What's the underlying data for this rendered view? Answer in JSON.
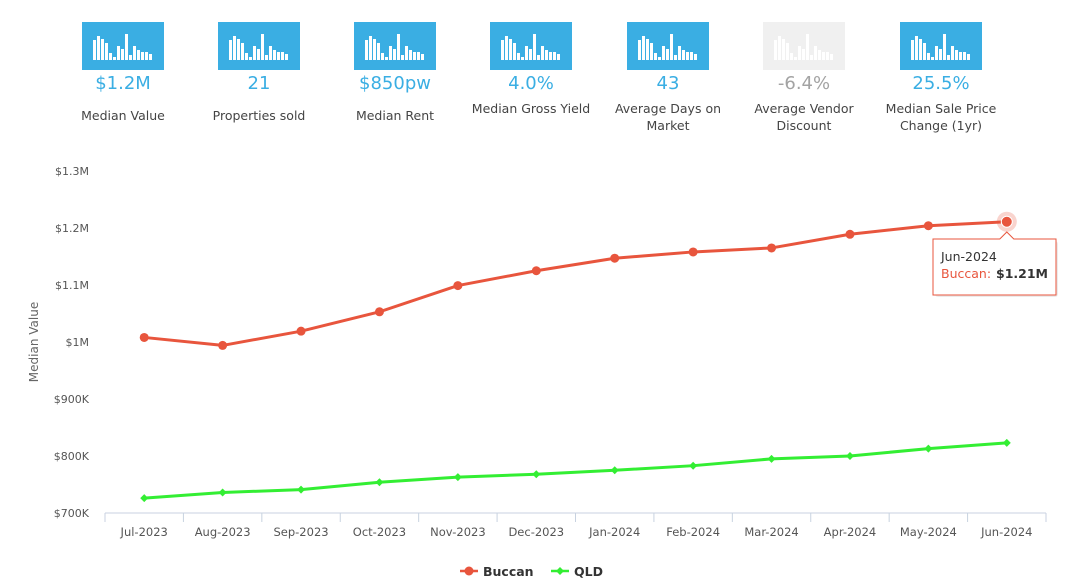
{
  "stats": [
    {
      "value": "$1.2M",
      "label": "Median Value",
      "muted": false
    },
    {
      "value": "21",
      "label": "Properties sold",
      "muted": false
    },
    {
      "value": "$850pw",
      "label": "Median Rent",
      "muted": false
    },
    {
      "value": "4.0%",
      "label": "Median Gross Yield",
      "muted": false
    },
    {
      "value": "43",
      "label": "Average Days on Market",
      "muted": false
    },
    {
      "value": "-6.4%",
      "label": "Average Vendor Discount",
      "muted": true
    },
    {
      "value": "25.5%",
      "label": "Median Sale Price Change (1yr)",
      "muted": false
    }
  ],
  "colors": {
    "stat_active": "#3aaee3",
    "stat_muted": "#f0f0f0",
    "buccan": "#e8553d",
    "qld": "#33ee33",
    "axis": "#c8d2e0"
  },
  "chart_data": {
    "type": "line",
    "title": "",
    "xlabel": "",
    "ylabel": "Median Value",
    "categories": [
      "Jul-2023",
      "Aug-2023",
      "Sep-2023",
      "Oct-2023",
      "Nov-2023",
      "Dec-2023",
      "Jan-2024",
      "Feb-2024",
      "Mar-2024",
      "Apr-2024",
      "May-2024",
      "Jun-2024"
    ],
    "ylim": [
      700000,
      1300000
    ],
    "yticks": [
      700000,
      800000,
      900000,
      1000000,
      1100000,
      1200000,
      1300000
    ],
    "ytick_labels": [
      "$700K",
      "$800K",
      "$900K",
      "$1M",
      "$1.1M",
      "$1.2M",
      "$1.3M"
    ],
    "series": [
      {
        "name": "Buccan",
        "marker": "circle",
        "values": [
          1008000,
          994000,
          1019000,
          1053000,
          1099000,
          1125000,
          1147000,
          1158000,
          1165000,
          1189000,
          1204000,
          1211000
        ]
      },
      {
        "name": "QLD",
        "marker": "diamond",
        "values": [
          726000,
          736000,
          741000,
          754000,
          763000,
          768000,
          775000,
          783000,
          795000,
          800000,
          813000,
          823000
        ]
      }
    ],
    "legend": "bottom-center",
    "tooltip": {
      "date": "Jun-2024",
      "series": "Buccan",
      "value_text": "$1.21M"
    }
  }
}
